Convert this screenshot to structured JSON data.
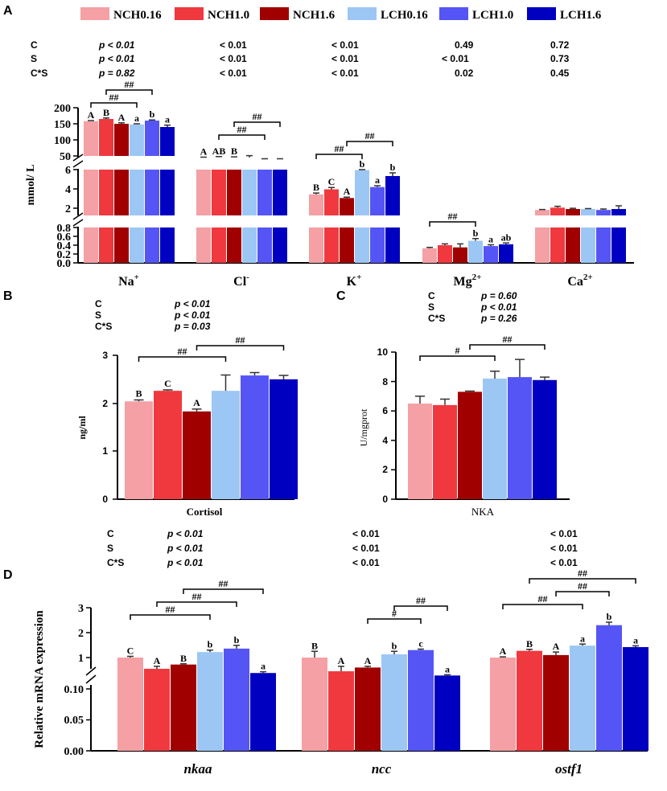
{
  "legend": {
    "entries": [
      "NCH0.16",
      "NCH1.0",
      "NCH1.6",
      "LCH0.16",
      "LCH1.0",
      "LCH1.6"
    ],
    "colors": [
      "#f4a0a4",
      "#f0383f",
      "#a00000",
      "#9cc7f5",
      "#5555f5",
      "#0000c0"
    ]
  },
  "panel_letters": [
    "A",
    "B",
    "C",
    "D"
  ],
  "stats_labels": [
    "C",
    "S",
    "C*S"
  ],
  "panel_a": {
    "stats": [
      [
        "p < 0.01",
        "< 0.01",
        "< 0.01",
        "0.49",
        "0.72"
      ],
      [
        "p < 0.01",
        "< 0.01",
        "< 0.01",
        "< 0.01",
        "0.73"
      ],
      [
        "p = 0.82",
        "< 0.01",
        "< 0.01",
        "0.02",
        "0.45"
      ]
    ],
    "ylabel": "mmol/ L",
    "ticks_top": [
      "200",
      "150",
      "100",
      "50"
    ],
    "ticks_mid": [
      "6",
      "4",
      "2"
    ],
    "ticks_bot": [
      "0.8",
      "0.6",
      "0.4",
      "0.2",
      "0.0"
    ]
  },
  "panel_b": {
    "stats": [
      "p < 0.01",
      "p < 0.01",
      "p = 0.03"
    ],
    "ylabel": "ng/ml",
    "ticks": [
      "3",
      "2",
      "1",
      "0"
    ]
  },
  "panel_c": {
    "stats": [
      "p = 0.60",
      "p < 0.01",
      "p = 0.26"
    ],
    "ylabel": "U/mgprot",
    "ticks": [
      "10",
      "8",
      "6",
      "4",
      "2",
      "0"
    ]
  },
  "panel_d": {
    "stats": [
      [
        "p < 0.01",
        "< 0.01",
        "< 0.01"
      ],
      [
        "p < 0.01",
        "< 0.01",
        "< 0.01"
      ],
      [
        "p < 0.01",
        "< 0.01",
        "< 0.01"
      ]
    ],
    "ylabel": "Relative mRNA expression",
    "ticks_top": [
      "3",
      "2",
      "1"
    ],
    "ticks_bot": [
      "0.10",
      "0.05",
      "0.00"
    ]
  },
  "chart_data": [
    {
      "panel": "A",
      "type": "bar",
      "ylabel": "mmol/ L",
      "broken_axis": [
        [
          0,
          0.8
        ],
        [
          1,
          6
        ],
        [
          50,
          200
        ]
      ],
      "categories": [
        "Na+",
        "Cl-",
        "K+",
        "Mg2+",
        "Ca2+"
      ],
      "category_labels": [
        {
          "base": "Na",
          "sup": "+"
        },
        {
          "base": "Cl",
          "sup": "-"
        },
        {
          "base": "K",
          "sup": "+"
        },
        {
          "base": "Mg",
          "sup": "2+"
        },
        {
          "base": "Ca",
          "sup": "2+"
        }
      ],
      "series": [
        {
          "name": "NCH0.16",
          "values": [
            158,
            45,
            3.3,
            0.33,
            1.6
          ],
          "errors": [
            2,
            1,
            0.15,
            0.02,
            0.05
          ]
        },
        {
          "name": "NCH1.0",
          "values": [
            165,
            47,
            3.85,
            0.4,
            1.85
          ],
          "errors": [
            3,
            1,
            0.2,
            0.03,
            0.15
          ]
        },
        {
          "name": "NCH1.6",
          "values": [
            150,
            46,
            2.9,
            0.35,
            1.7
          ],
          "errors": [
            3,
            1,
            0.1,
            0.08,
            0.08
          ]
        },
        {
          "name": "LCH0.16",
          "values": [
            148,
            45,
            5.95,
            0.5,
            1.7
          ],
          "errors": [
            2,
            6,
            0.08,
            0.05,
            0.05
          ]
        },
        {
          "name": "LCH1.0",
          "values": [
            160,
            40,
            4.1,
            0.38,
            1.6
          ],
          "errors": [
            2,
            1,
            0.15,
            0.03,
            0.1
          ]
        },
        {
          "name": "LCH1.6",
          "values": [
            140,
            40,
            5.3,
            0.42,
            1.7
          ],
          "errors": [
            6,
            1,
            0.35,
            0.03,
            0.35
          ]
        }
      ],
      "letters": [
        [
          "A",
          "B",
          "A",
          "a",
          "b",
          "a"
        ],
        [
          "A",
          "AB",
          "B",
          "",
          "",
          ""
        ],
        [
          "B",
          "C",
          "A",
          "b",
          "a",
          "b"
        ],
        [
          "",
          "",
          "",
          "b",
          "a",
          "ab"
        ],
        [
          "",
          "",
          "",
          "",
          "",
          ""
        ]
      ],
      "brackets": [
        {
          "cat": 0,
          "from": 0,
          "to": 3,
          "label": "##",
          "level": 0
        },
        {
          "cat": 0,
          "from": 1,
          "to": 4,
          "label": "##",
          "level": 1
        },
        {
          "cat": 1,
          "from": 1,
          "to": 4,
          "label": "##",
          "level": 0
        },
        {
          "cat": 1,
          "from": 2,
          "to": 5,
          "label": "##",
          "level": 1
        },
        {
          "cat": 2,
          "from": 0,
          "to": 3,
          "label": "##",
          "level": 0
        },
        {
          "cat": 2,
          "from": 2,
          "to": 5,
          "label": "##",
          "level": 1
        },
        {
          "cat": 3,
          "from": 0,
          "to": 3,
          "label": "##",
          "level": 0
        }
      ]
    },
    {
      "panel": "B",
      "type": "bar",
      "ylabel": "ng/ml",
      "ylim": [
        0,
        3
      ],
      "categories": [
        "Cortisol"
      ],
      "series_values": [
        2.04,
        2.26,
        1.83,
        2.26,
        2.58,
        2.5
      ],
      "series_errors": [
        0.03,
        0.02,
        0.05,
        0.33,
        0.06,
        0.08
      ],
      "letters": [
        "B",
        "C",
        "A",
        "",
        "",
        ""
      ],
      "brackets": [
        {
          "from": 0,
          "to": 3,
          "label": "##",
          "level": 0
        },
        {
          "from": 2,
          "to": 5,
          "label": "##",
          "level": 1
        }
      ]
    },
    {
      "panel": "C",
      "type": "bar",
      "ylabel": "U/mgprot",
      "ylim": [
        0,
        10
      ],
      "categories": [
        "NKA"
      ],
      "series_values": [
        6.5,
        6.4,
        7.3,
        8.2,
        8.3,
        8.1
      ],
      "series_errors": [
        0.5,
        0.4,
        0.05,
        0.5,
        1.2,
        0.2
      ],
      "letters": [
        "",
        "",
        "",
        "",
        "",
        ""
      ],
      "brackets": [
        {
          "from": 0,
          "to": 3,
          "label": "#",
          "level": 0
        },
        {
          "from": 2,
          "to": 5,
          "label": "##",
          "level": 1
        }
      ]
    },
    {
      "panel": "D",
      "type": "bar",
      "ylabel": "Relative mRNA expression",
      "broken_axis": [
        [
          0,
          0.1
        ],
        [
          0.5,
          3
        ]
      ],
      "categories": [
        "nkaa",
        "ncc",
        "ostf1"
      ],
      "series": [
        {
          "name": "NCH0.16",
          "values": [
            1.0,
            1.0,
            1.0
          ],
          "errors": [
            0.05,
            0.25,
            0.03
          ]
        },
        {
          "name": "NCH1.0",
          "values": [
            0.55,
            0.45,
            1.27
          ],
          "errors": [
            0.1,
            0.2,
            0.06
          ]
        },
        {
          "name": "NCH1.6",
          "values": [
            0.72,
            0.6,
            1.1
          ],
          "errors": [
            0.03,
            0.05,
            0.12
          ]
        },
        {
          "name": "LCH0.16",
          "values": [
            1.22,
            1.13,
            1.48
          ],
          "errors": [
            0.08,
            0.12,
            0.06
          ]
        },
        {
          "name": "LCH1.0",
          "values": [
            1.36,
            1.3,
            2.3
          ],
          "errors": [
            0.13,
            0.04,
            0.12
          ]
        },
        {
          "name": "LCH1.6",
          "values": [
            0.38,
            0.28,
            1.42
          ],
          "errors": [
            0.05,
            0.03,
            0.05
          ]
        }
      ],
      "letters": [
        [
          "C",
          "A",
          "B",
          "b",
          "b",
          "a"
        ],
        [
          "B",
          "A",
          "A",
          "b",
          "c",
          "a"
        ],
        [
          "A",
          "B",
          "A",
          "a",
          "b",
          "a"
        ]
      ],
      "brackets": [
        {
          "cat": 0,
          "from": 0,
          "to": 3,
          "label": "##",
          "level": 0
        },
        {
          "cat": 0,
          "from": 1,
          "to": 4,
          "label": "##",
          "level": 1
        },
        {
          "cat": 0,
          "from": 2,
          "to": 5,
          "label": "##",
          "level": 2
        },
        {
          "cat": 1,
          "from": 2,
          "to": 4,
          "label": "#",
          "level": 0
        },
        {
          "cat": 1,
          "from": 3,
          "to": 5,
          "label": "##",
          "level": 1
        },
        {
          "cat": 2,
          "from": 0,
          "to": 3,
          "label": "##",
          "level": 0
        },
        {
          "cat": 2,
          "from": 2,
          "to": 4,
          "label": "##",
          "level": 1
        },
        {
          "cat": 2,
          "from": 1,
          "to": 5,
          "label": "##",
          "level": 2
        }
      ]
    }
  ]
}
